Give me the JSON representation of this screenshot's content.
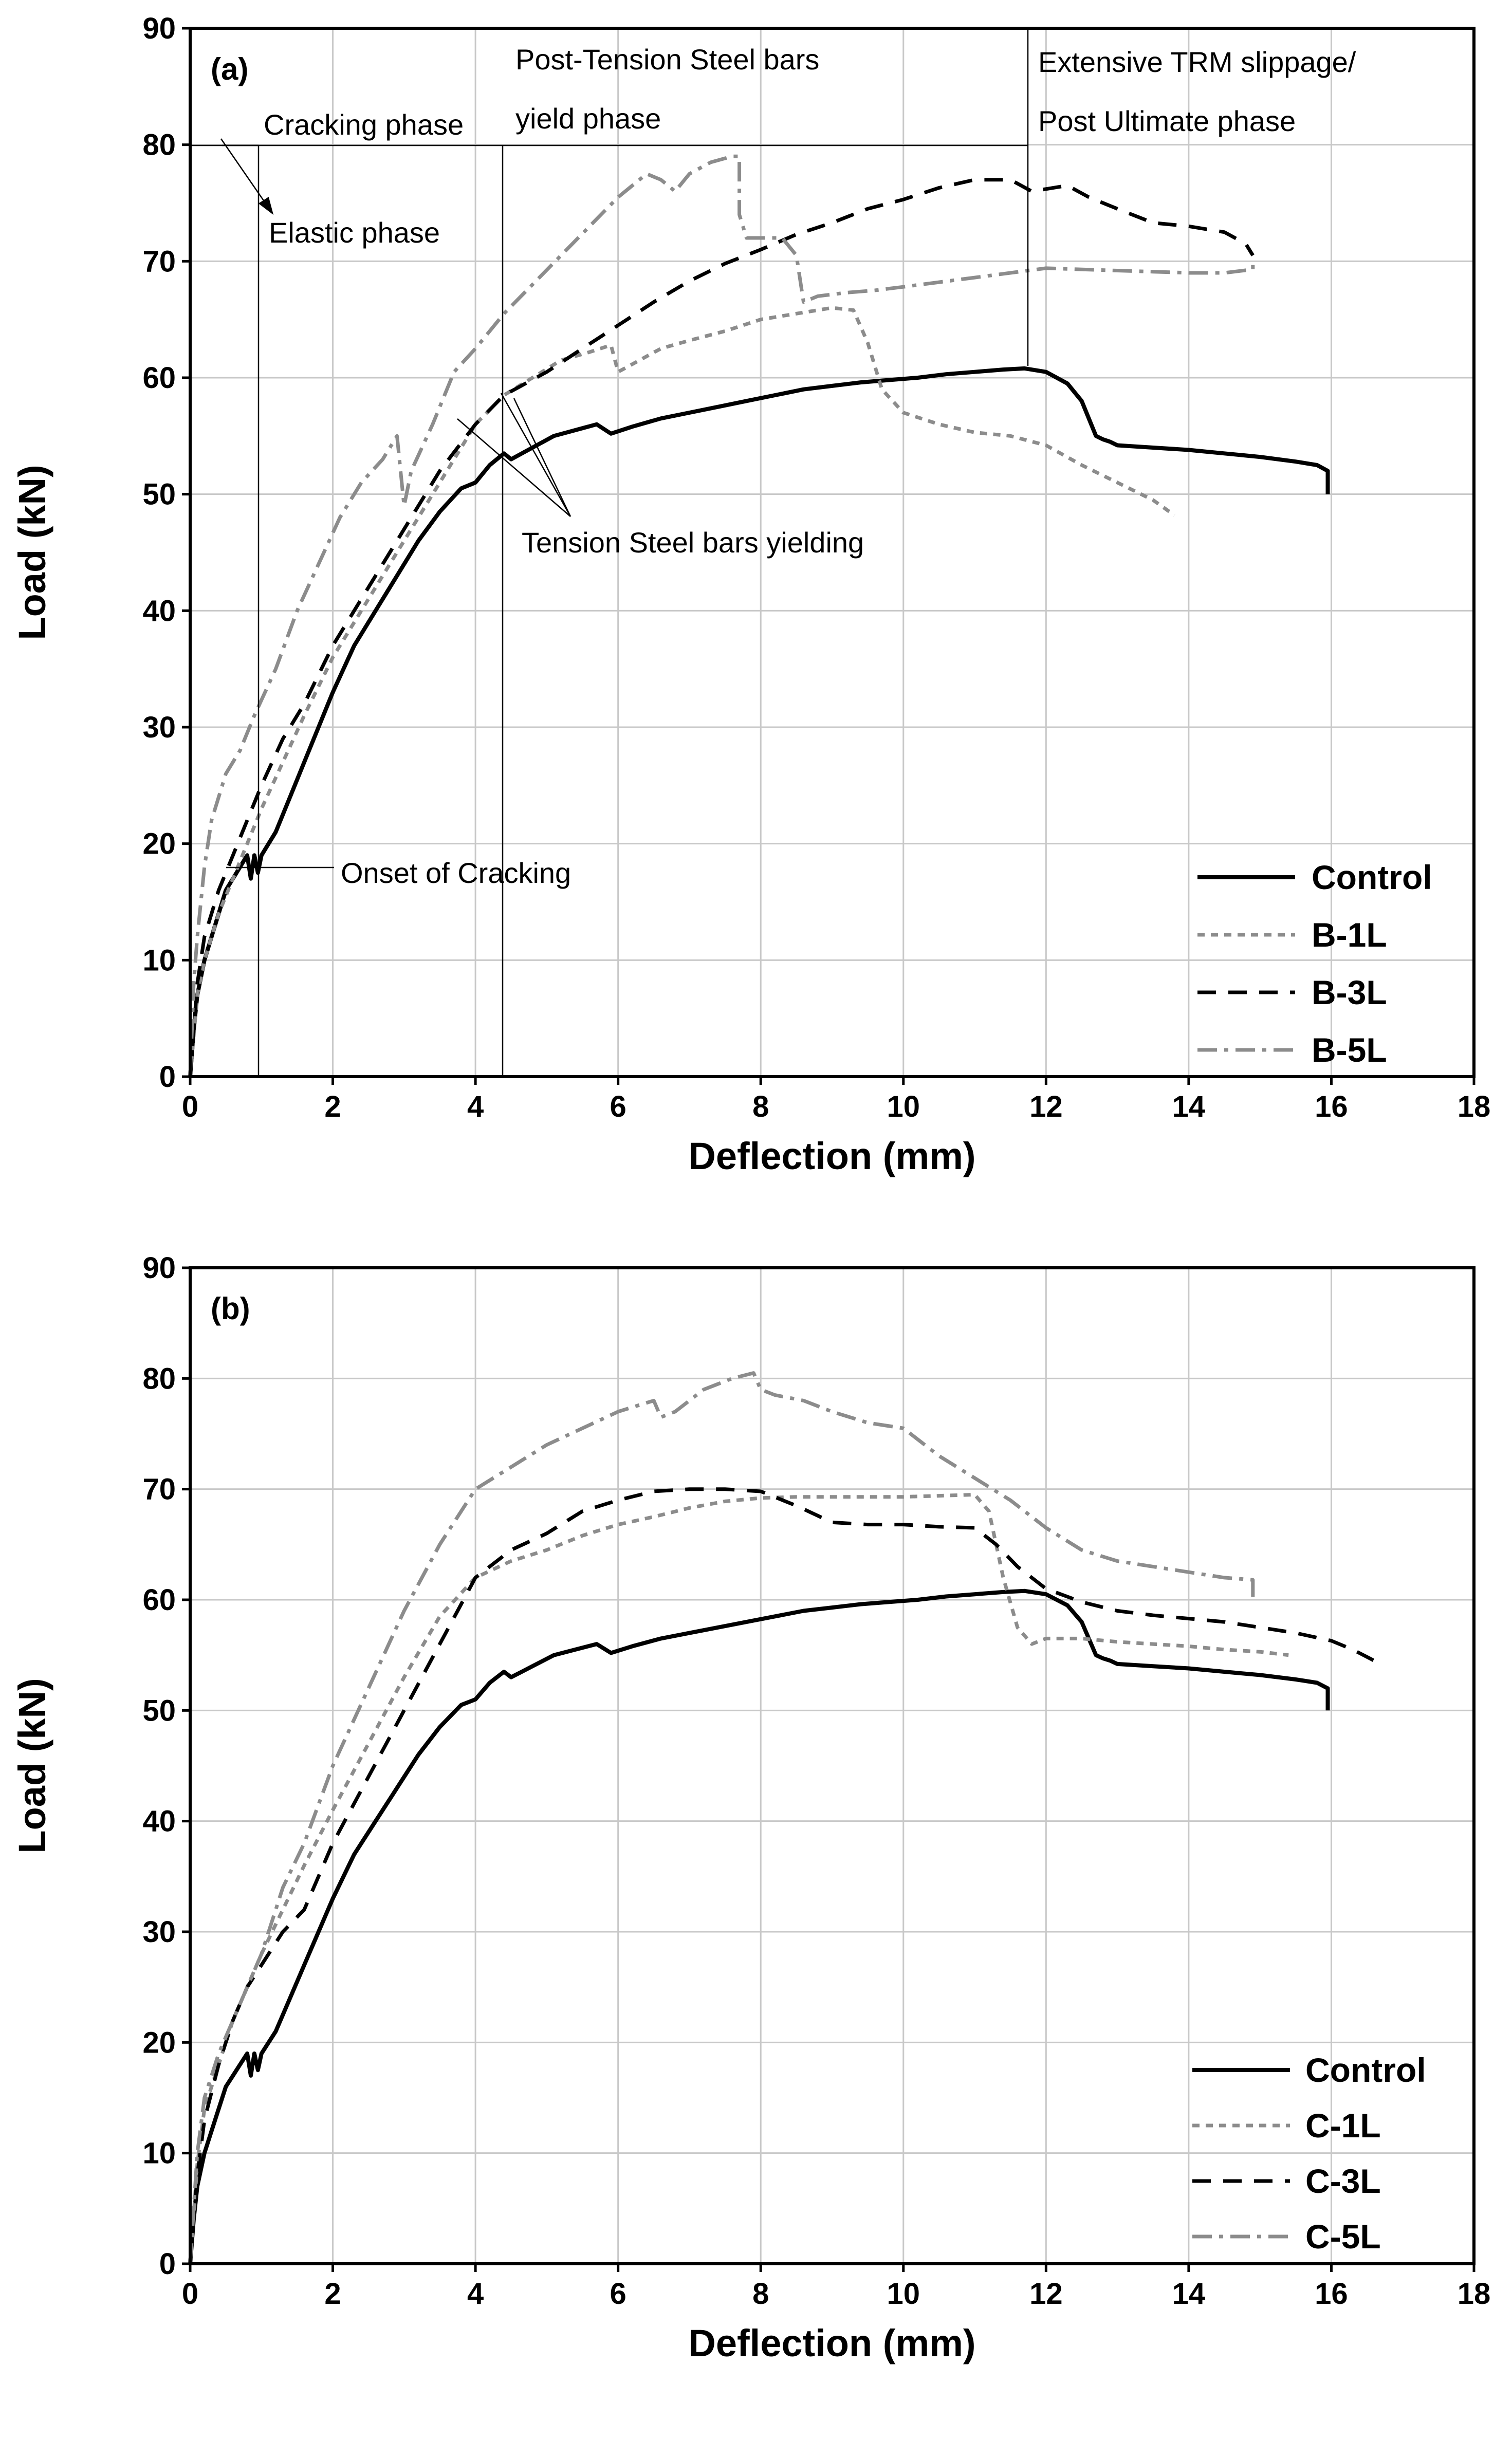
{
  "chart_data": [
    {
      "type": "line",
      "panel": "(a)",
      "xlabel": "Deflection (mm)",
      "ylabel": "Load (kN)",
      "xlim": [
        0,
        18
      ],
      "ylim": [
        0,
        90
      ],
      "xticks": [
        0,
        2,
        4,
        6,
        8,
        10,
        12,
        14,
        16,
        18
      ],
      "yticks": [
        0,
        10,
        20,
        30,
        40,
        50,
        60,
        70,
        80,
        90
      ],
      "grid": true,
      "legend_position": "bottom-right",
      "series": [
        {
          "name": "Control",
          "style": "solid",
          "color": "#000000",
          "x": [
            0,
            0.05,
            0.1,
            0.2,
            0.3,
            0.4,
            0.5,
            0.6,
            0.7,
            0.8,
            0.85,
            0.9,
            0.95,
            1.0,
            1.2,
            1.4,
            1.6,
            1.8,
            2.0,
            2.3,
            2.6,
            2.9,
            3.2,
            3.5,
            3.8,
            4.0,
            4.2,
            4.4,
            4.5,
            4.8,
            5.1,
            5.4,
            5.7,
            5.9,
            6.2,
            6.6,
            7.0,
            7.4,
            7.8,
            8.2,
            8.6,
            9.0,
            9.4,
            9.8,
            10.2,
            10.6,
            11.0,
            11.4,
            11.7,
            12.0,
            12.3,
            12.5,
            12.6,
            12.7,
            12.8,
            12.9,
            13.0,
            13.5,
            14.0,
            14.5,
            15.0,
            15.5,
            15.8,
            15.95,
            15.95
          ],
          "y": [
            0,
            4,
            7,
            10,
            12,
            14,
            16,
            17,
            18,
            19,
            17,
            19,
            17.5,
            19,
            21,
            24,
            27,
            30,
            33,
            37,
            40,
            43,
            46,
            48.5,
            50.5,
            51,
            52.5,
            53.5,
            53,
            54,
            55,
            55.5,
            56,
            55.2,
            55.8,
            56.5,
            57,
            57.5,
            58,
            58.5,
            59,
            59.3,
            59.6,
            59.8,
            60,
            60.3,
            60.5,
            60.7,
            60.8,
            60.5,
            59.5,
            58,
            56.5,
            55,
            54.7,
            54.5,
            54.2,
            54,
            53.8,
            53.5,
            53.2,
            52.8,
            52.5,
            52,
            50
          ]
        },
        {
          "name": "B-1L",
          "style": "dotted",
          "color": "#8c8c8c",
          "x": [
            0,
            0.1,
            0.2,
            0.4,
            0.6,
            0.8,
            1.0,
            1.3,
            1.6,
            2.0,
            2.5,
            3.0,
            3.5,
            4.0,
            4.4,
            4.8,
            5.2,
            5.6,
            5.9,
            6.0,
            6.3,
            6.6,
            7.0,
            7.5,
            8.0,
            8.5,
            9.0,
            9.3,
            9.5,
            9.7,
            10.0,
            10.5,
            11.0,
            11.5,
            12.0,
            12.5,
            13.0,
            13.5,
            13.8
          ],
          "y": [
            0,
            7,
            10,
            14,
            17,
            20,
            23,
            27,
            31,
            36,
            41,
            46,
            51,
            56,
            58.5,
            60,
            61.5,
            62.2,
            62.8,
            60.5,
            61.5,
            62.5,
            63.2,
            64,
            65,
            65.5,
            66,
            65.8,
            63,
            59,
            57,
            56,
            55.3,
            55,
            54.2,
            52.5,
            51,
            49.5,
            48.2
          ]
        },
        {
          "name": "B-3L",
          "style": "dashed",
          "color": "#000000",
          "x": [
            0,
            0.1,
            0.2,
            0.4,
            0.6,
            0.8,
            1.0,
            1.3,
            1.6,
            2.0,
            2.5,
            3.0,
            3.5,
            4.0,
            4.4,
            5.0,
            5.5,
            6.0,
            6.5,
            7.0,
            7.5,
            8.0,
            8.5,
            9.0,
            9.5,
            10.0,
            10.5,
            11.0,
            11.5,
            11.8,
            12.0,
            12.3,
            12.6,
            13.0,
            13.5,
            14.0,
            14.5,
            14.8,
            14.9
          ],
          "y": [
            0,
            8,
            12,
            16,
            19,
            22,
            25,
            29,
            32,
            37,
            42,
            47,
            52,
            56,
            58.5,
            60.5,
            62.5,
            64.5,
            66.5,
            68.3,
            69.8,
            71,
            72.3,
            73.3,
            74.5,
            75.3,
            76.3,
            77,
            77,
            76,
            76.2,
            76.5,
            75.5,
            74.5,
            73.3,
            73,
            72.5,
            71.5,
            70.5
          ]
        },
        {
          "name": "B-5L",
          "style": "dashdot",
          "color": "#8c8c8c",
          "x": [
            0,
            0.05,
            0.1,
            0.2,
            0.3,
            0.5,
            0.7,
            0.9,
            1.2,
            1.5,
            1.8,
            2.1,
            2.4,
            2.7,
            2.9,
            3.0,
            3.1,
            3.4,
            3.7,
            4.0,
            4.4,
            4.8,
            5.2,
            5.6,
            6.0,
            6.4,
            6.6,
            6.8,
            7.0,
            7.3,
            7.6,
            7.7,
            7.7,
            7.8,
            8.0,
            8.3,
            8.5,
            8.6,
            8.8,
            9.2,
            9.6,
            10.0,
            10.5,
            11.0,
            11.5,
            12.0,
            12.5,
            13.0,
            13.5,
            14.0,
            14.5,
            14.9,
            14.9
          ],
          "y": [
            0,
            8,
            12,
            18,
            22,
            26,
            28,
            31,
            35,
            40,
            44,
            48,
            51,
            53,
            55,
            49,
            52,
            56,
            60.5,
            62.5,
            65.5,
            68,
            70.5,
            73,
            75.5,
            77.5,
            77,
            76,
            77.5,
            78.5,
            79,
            79,
            74,
            72,
            72,
            72,
            70.5,
            66.5,
            67,
            67.3,
            67.5,
            67.8,
            68.2,
            68.6,
            69,
            69.4,
            69.3,
            69.2,
            69.1,
            69,
            69,
            69.3,
            70
          ]
        }
      ],
      "annotations": [
        "Cracking phase",
        "Elastic phase",
        "Post-Tension Steel bars",
        "yield phase",
        "Extensive TRM slippage/",
        "Post Ultimate phase",
        "Tension Steel bars yielding",
        "Onset of Cracking"
      ]
    },
    {
      "type": "line",
      "panel": "(b)",
      "xlabel": "Deflection (mm)",
      "ylabel": "Load (kN)",
      "xlim": [
        0,
        18
      ],
      "ylim": [
        0,
        90
      ],
      "xticks": [
        0,
        2,
        4,
        6,
        8,
        10,
        12,
        14,
        16,
        18
      ],
      "yticks": [
        0,
        10,
        20,
        30,
        40,
        50,
        60,
        70,
        80,
        90
      ],
      "grid": true,
      "legend_position": "bottom-right",
      "series": [
        {
          "name": "Control",
          "style": "solid",
          "color": "#000000",
          "x": [
            0,
            0.05,
            0.1,
            0.2,
            0.3,
            0.4,
            0.5,
            0.6,
            0.7,
            0.8,
            0.85,
            0.9,
            0.95,
            1.0,
            1.2,
            1.4,
            1.6,
            1.8,
            2.0,
            2.3,
            2.6,
            2.9,
            3.2,
            3.5,
            3.8,
            4.0,
            4.2,
            4.4,
            4.5,
            4.8,
            5.1,
            5.4,
            5.7,
            5.9,
            6.2,
            6.6,
            7.0,
            7.4,
            7.8,
            8.2,
            8.6,
            9.0,
            9.4,
            9.8,
            10.2,
            10.6,
            11.0,
            11.4,
            11.7,
            12.0,
            12.3,
            12.5,
            12.6,
            12.7,
            12.8,
            12.9,
            13.0,
            13.5,
            14.0,
            14.5,
            15.0,
            15.5,
            15.8,
            15.95,
            15.95
          ],
          "y": [
            0,
            4,
            7,
            10,
            12,
            14,
            16,
            17,
            18,
            19,
            17,
            19,
            17.5,
            19,
            21,
            24,
            27,
            30,
            33,
            37,
            40,
            43,
            46,
            48.5,
            50.5,
            51,
            52.5,
            53.5,
            53,
            54,
            55,
            55.5,
            56,
            55.2,
            55.8,
            56.5,
            57,
            57.5,
            58,
            58.5,
            59,
            59.3,
            59.6,
            59.8,
            60,
            60.3,
            60.5,
            60.7,
            60.8,
            60.5,
            59.5,
            58,
            56.5,
            55,
            54.7,
            54.5,
            54.2,
            54,
            53.8,
            53.5,
            53.2,
            52.8,
            52.5,
            52,
            50
          ]
        },
        {
          "name": "C-1L",
          "style": "dotted",
          "color": "#8c8c8c",
          "x": [
            0,
            0.1,
            0.2,
            0.4,
            0.6,
            0.8,
            1.0,
            1.3,
            1.6,
            2.0,
            2.5,
            3.0,
            3.5,
            4.0,
            4.5,
            5.0,
            5.5,
            6.0,
            6.5,
            7.0,
            7.5,
            8.0,
            8.5,
            9.0,
            9.5,
            10.0,
            10.5,
            11.0,
            11.2,
            11.4,
            11.6,
            11.8,
            12.0,
            12.5,
            13.0,
            13.5,
            14.0,
            14.5,
            15.0,
            15.4
          ],
          "y": [
            0,
            9,
            14,
            18,
            22,
            25,
            28,
            32,
            36,
            41,
            47,
            53,
            58.5,
            62,
            63.5,
            64.5,
            65.8,
            66.8,
            67.5,
            68.3,
            68.9,
            69.2,
            69.3,
            69.3,
            69.3,
            69.3,
            69.4,
            69.5,
            68,
            62,
            57.5,
            56,
            56.5,
            56.5,
            56.2,
            56,
            55.8,
            55.5,
            55.3,
            55
          ]
        },
        {
          "name": "C-3L",
          "style": "dashed",
          "color": "#000000",
          "x": [
            0,
            0.1,
            0.2,
            0.4,
            0.6,
            0.8,
            1.0,
            1.3,
            1.6,
            2.0,
            2.5,
            3.0,
            3.5,
            4.0,
            4.5,
            5.0,
            5.5,
            6.0,
            6.5,
            7.0,
            7.5,
            8.0,
            8.5,
            9.0,
            9.5,
            10.0,
            10.5,
            11.0,
            11.3,
            11.6,
            12.0,
            12.5,
            13.0,
            13.5,
            14.0,
            14.5,
            15.0,
            15.5,
            16.0,
            16.3,
            16.6
          ],
          "y": [
            0,
            8,
            13,
            18,
            22,
            25,
            27,
            30,
            32,
            38,
            44,
            50,
            56,
            62,
            64.5,
            66,
            68,
            69,
            69.8,
            70,
            70,
            69.8,
            68.5,
            67,
            66.8,
            66.8,
            66.6,
            66.5,
            65,
            63,
            61,
            59.8,
            59,
            58.6,
            58.3,
            58,
            57.5,
            57,
            56.3,
            55.5,
            54.5
          ]
        },
        {
          "name": "C-5L",
          "style": "dashdot",
          "color": "#8c8c8c",
          "x": [
            0,
            0.1,
            0.2,
            0.4,
            0.6,
            0.8,
            1.0,
            1.3,
            1.6,
            2.0,
            2.5,
            3.0,
            3.5,
            4.0,
            4.5,
            5.0,
            5.5,
            6.0,
            6.5,
            6.6,
            6.8,
            7.2,
            7.6,
            7.9,
            8.0,
            8.2,
            8.6,
            9.0,
            9.5,
            10.0,
            10.5,
            11.0,
            11.5,
            12.0,
            12.5,
            13.0,
            13.5,
            14.0,
            14.5,
            14.9,
            14.9
          ],
          "y": [
            0,
            10,
            15,
            19,
            22,
            25,
            28,
            34,
            38,
            45,
            52,
            59,
            65,
            70,
            72,
            74,
            75.5,
            77,
            78,
            76.5,
            77,
            79,
            80,
            80.5,
            79,
            78.5,
            78,
            77,
            76,
            75.5,
            73,
            71,
            69,
            66.5,
            64.5,
            63.5,
            63,
            62.5,
            62,
            61.8,
            60
          ]
        }
      ]
    }
  ]
}
